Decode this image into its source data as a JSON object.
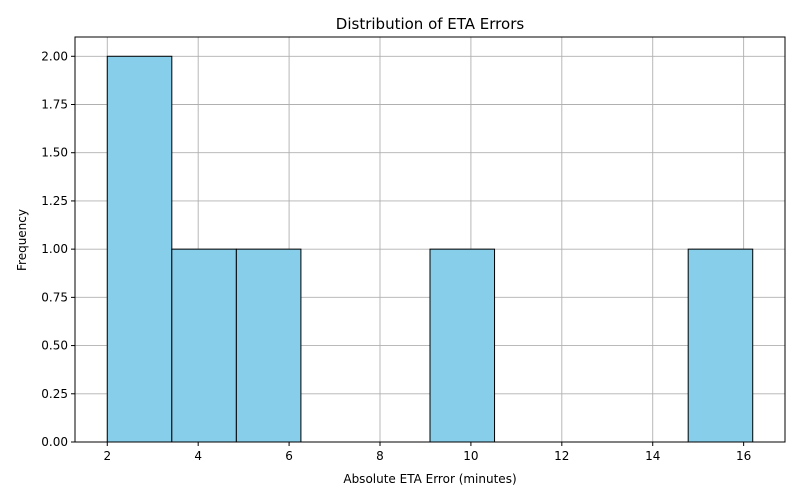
{
  "chart_data": {
    "type": "bar",
    "title": "Distribution of ETA Errors",
    "xlabel": "Absolute ETA Error (minutes)",
    "ylabel": "Frequency",
    "bins": [
      {
        "start": 2.0,
        "end": 3.42,
        "count": 2
      },
      {
        "start": 3.42,
        "end": 4.84,
        "count": 1
      },
      {
        "start": 4.84,
        "end": 6.26,
        "count": 1
      },
      {
        "start": 6.26,
        "end": 7.68,
        "count": 0
      },
      {
        "start": 7.68,
        "end": 9.1,
        "count": 0
      },
      {
        "start": 9.1,
        "end": 10.52,
        "count": 1
      },
      {
        "start": 10.52,
        "end": 11.94,
        "count": 0
      },
      {
        "start": 11.94,
        "end": 13.36,
        "count": 0
      },
      {
        "start": 13.36,
        "end": 14.78,
        "count": 0
      },
      {
        "start": 14.78,
        "end": 16.2,
        "count": 1
      }
    ],
    "xlim": [
      1.29,
      16.91
    ],
    "ylim": [
      0,
      2.1
    ],
    "xticks": [
      2,
      4,
      6,
      8,
      10,
      12,
      14,
      16
    ],
    "yticks": [
      0.0,
      0.25,
      0.5,
      0.75,
      1.0,
      1.25,
      1.5,
      1.75,
      2.0
    ],
    "ytick_labels": [
      "0.00",
      "0.25",
      "0.50",
      "0.75",
      "1.00",
      "1.25",
      "1.50",
      "1.75",
      "2.00"
    ],
    "grid": true,
    "bar_color": "#87CEEB",
    "edge_color": "#000000"
  }
}
